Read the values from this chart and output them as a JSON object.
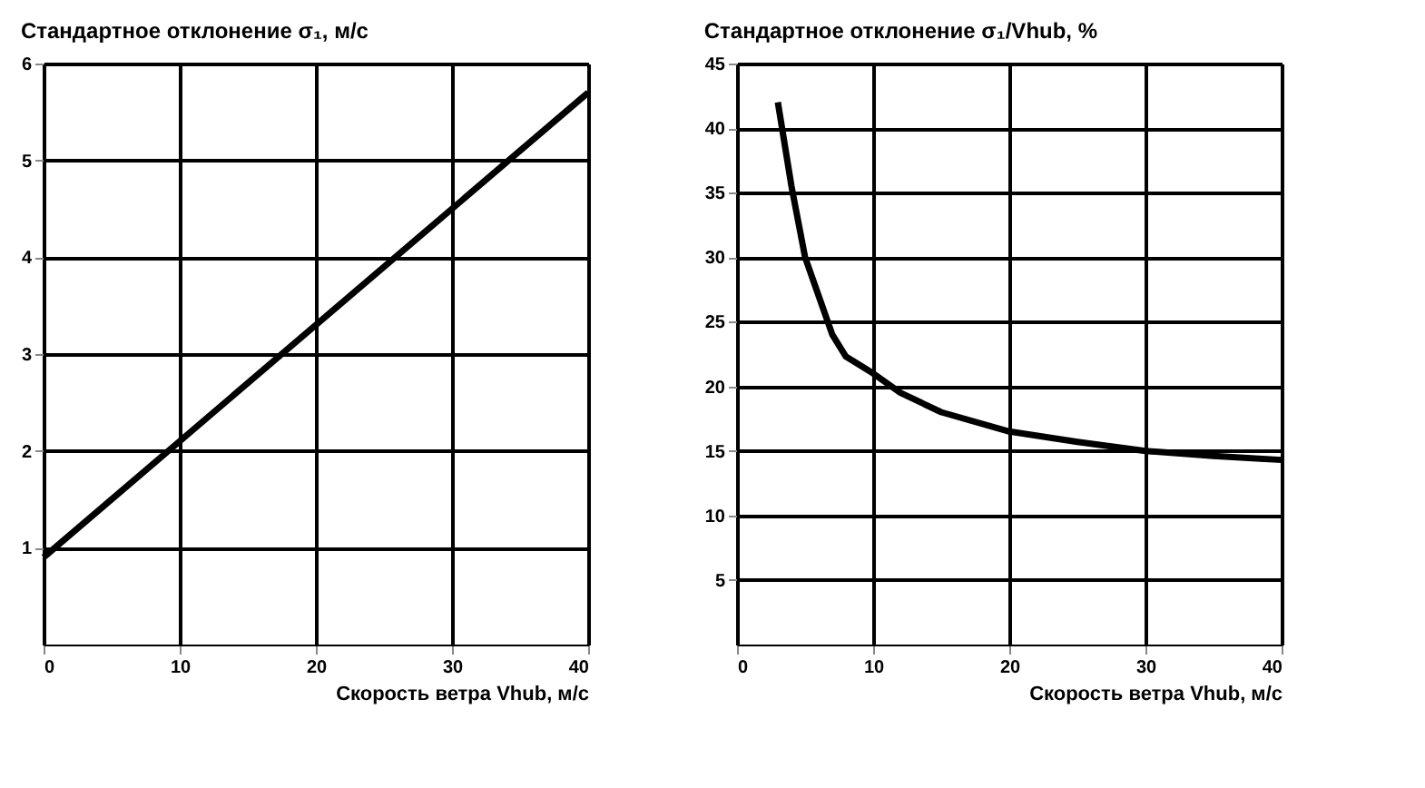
{
  "chart_data": [
    {
      "type": "line",
      "title": "Стандартное отклонение σ₁, м/с",
      "xlabel": "Скорость ветра Vhub, м/с",
      "x": [
        0,
        40
      ],
      "series": [
        {
          "color": "#000000",
          "values": [
            0.9,
            5.7
          ]
        }
      ],
      "xlim": [
        0,
        40
      ],
      "xticks": [
        0,
        10,
        20,
        30,
        40
      ],
      "ylim": [
        0,
        6
      ],
      "yticks": [
        1,
        2,
        3,
        4,
        5,
        6
      ],
      "grid": true
    },
    {
      "type": "line",
      "title": "Стандартное отклонение σ₁/Vhub, %",
      "xlabel": "Скорость ветра Vhub, м/с",
      "x": [
        3,
        4,
        5,
        6,
        7,
        8,
        10,
        12,
        15,
        20,
        25,
        30,
        35,
        40
      ],
      "series": [
        {
          "color": "#000000",
          "values": [
            42,
            35.5,
            30,
            27,
            24,
            22.3,
            21,
            19.5,
            18,
            16.5,
            15.7,
            15,
            14.6,
            14.3
          ]
        }
      ],
      "xlim": [
        0,
        40
      ],
      "xticks": [
        0,
        10,
        20,
        30,
        40
      ],
      "ylim": [
        0,
        45
      ],
      "yticks": [
        5,
        10,
        15,
        20,
        25,
        30,
        35,
        40,
        45
      ],
      "grid": true
    }
  ]
}
